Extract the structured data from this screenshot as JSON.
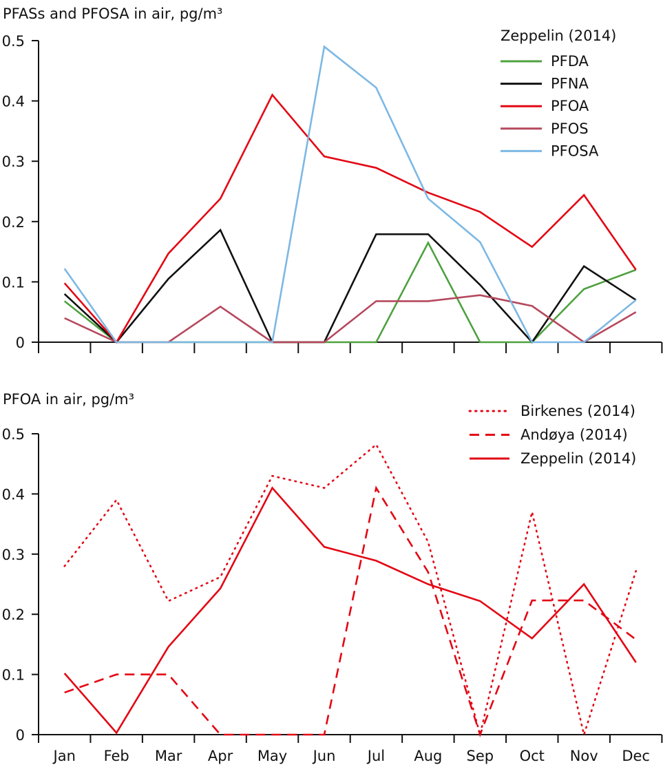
{
  "chart_data": [
    {
      "type": "line",
      "title": "PFASs and PFOSA in air, pg/m³",
      "xlabel": "",
      "ylabel": "PFASs and PFOSA in air, pg/m³",
      "categories": [
        "Jan",
        "Feb",
        "Mar",
        "Apr",
        "May",
        "Jun",
        "Jul",
        "Aug",
        "Sep",
        "Oct",
        "Nov",
        "Dec"
      ],
      "show_x_tick_labels": false,
      "ylim": [
        0,
        0.5
      ],
      "yticks": [
        0,
        0.1,
        0.2,
        0.3,
        0.4,
        0.5
      ],
      "ytick_labels": [
        "0",
        "0.1",
        "0.2",
        "0.3",
        "0.4",
        "0.5"
      ],
      "grid": false,
      "legend_title": "Zeppelin (2014)",
      "legend_position": "top-right",
      "series": [
        {
          "name": "PFDA",
          "color": "#4ea13f",
          "style": "solid",
          "values": [
            0.068,
            0,
            0,
            0,
            0,
            0,
            0,
            0.165,
            0,
            0,
            0.088,
            0.12
          ]
        },
        {
          "name": "PFNA",
          "color": "#111111",
          "style": "solid",
          "values": [
            0.08,
            0,
            0.105,
            0.186,
            0,
            0,
            0.179,
            0.179,
            0.095,
            0,
            0.126,
            0.07
          ]
        },
        {
          "name": "PFOA",
          "color": "#e30613",
          "style": "solid",
          "values": [
            0.098,
            0,
            0.147,
            0.238,
            0.41,
            0.308,
            0.289,
            0.248,
            0.216,
            0.158,
            0.244,
            0.12
          ]
        },
        {
          "name": "PFOS",
          "color": "#b5485d",
          "style": "solid",
          "values": [
            0.04,
            0,
            0,
            0.059,
            0,
            0,
            0.068,
            0.068,
            0.078,
            0.06,
            0,
            0.05
          ]
        },
        {
          "name": "PFOSA",
          "color": "#7cb8e4",
          "style": "solid",
          "values": [
            0.122,
            0,
            0,
            0,
            0,
            0.49,
            0.422,
            0.238,
            0.166,
            0,
            0,
            0.07
          ]
        }
      ]
    },
    {
      "type": "line",
      "title": "PFOA in air, pg/m³",
      "xlabel": "",
      "ylabel": "PFOA in air, pg/m³",
      "categories": [
        "Jan",
        "Feb",
        "Mar",
        "Apr",
        "May",
        "Jun",
        "Jul",
        "Aug",
        "Sep",
        "Oct",
        "Nov",
        "Dec"
      ],
      "show_x_tick_labels": true,
      "ylim": [
        0,
        0.5
      ],
      "yticks": [
        0,
        0.1,
        0.2,
        0.3,
        0.4,
        0.5
      ],
      "ytick_labels": [
        "0",
        "0.1",
        "0.2",
        "0.3",
        "0.4",
        "0.5"
      ],
      "grid": false,
      "legend_title": "",
      "legend_position": "top-right",
      "series": [
        {
          "name": "Birkenes (2014)",
          "color": "#e30613",
          "style": "dotted",
          "values": [
            0.28,
            0.39,
            0.222,
            0.262,
            0.43,
            0.41,
            0.482,
            0.32,
            0,
            0.37,
            0,
            0.272
          ]
        },
        {
          "name": "Andøya (2014)",
          "color": "#e30613",
          "style": "dashed",
          "values": [
            0.07,
            0.1,
            0.1,
            0,
            0,
            0,
            0.41,
            0.27,
            0,
            0.223,
            0.223,
            0.158
          ]
        },
        {
          "name": "Zeppelin (2014)",
          "color": "#e30613",
          "style": "solid",
          "values": [
            0.102,
            0.003,
            0.146,
            0.243,
            0.41,
            0.312,
            0.289,
            0.25,
            0.222,
            0.16,
            0.25,
            0.12
          ]
        }
      ]
    }
  ]
}
